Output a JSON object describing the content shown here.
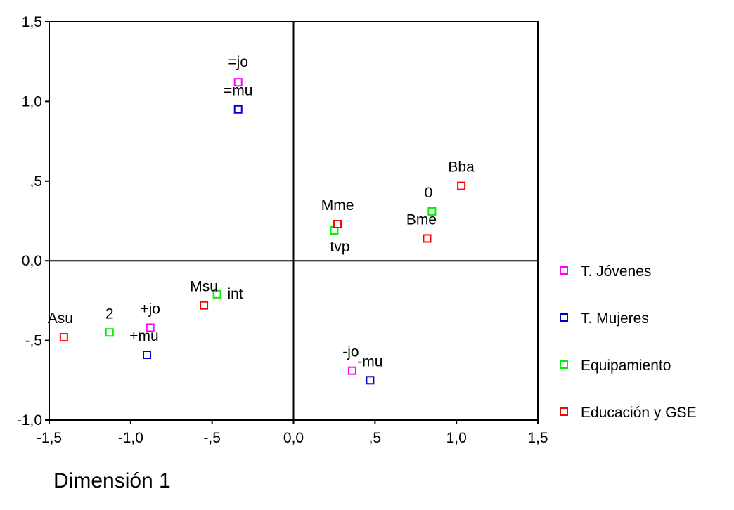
{
  "chart_data": {
    "type": "scatter",
    "xlabel": "Dimensión 1",
    "ylabel": "",
    "xlim": [
      -1.5,
      1.5
    ],
    "ylim": [
      -1.0,
      1.5
    ],
    "xticks": [
      {
        "value": -1.5,
        "label": "-1,5"
      },
      {
        "value": -1.0,
        "label": "-1,0"
      },
      {
        "value": -0.5,
        "label": "-,5"
      },
      {
        "value": 0.0,
        "label": "0,0"
      },
      {
        "value": 0.5,
        "label": ",5"
      },
      {
        "value": 1.0,
        "label": "1,0"
      },
      {
        "value": 1.5,
        "label": "1,5"
      }
    ],
    "yticks": [
      {
        "value": 1.5,
        "label": "1,5"
      },
      {
        "value": 1.0,
        "label": "1,0"
      },
      {
        "value": 0.5,
        "label": ",5"
      },
      {
        "value": 0.0,
        "label": "0,0"
      },
      {
        "value": -0.5,
        "label": "-,5"
      },
      {
        "value": -1.0,
        "label": "-1,0"
      }
    ],
    "reference_lines": {
      "x": 0.0,
      "y": 0.0
    },
    "grid": false,
    "legend_position": "right",
    "series": [
      {
        "name": "T. Jóvenes",
        "color": "#ff00ff",
        "marker": "open-square",
        "points": [
          {
            "x": -0.34,
            "y": 1.12,
            "label": "=jo"
          },
          {
            "x": -0.88,
            "y": -0.42,
            "label": "+jo"
          },
          {
            "x": 0.36,
            "y": -0.69,
            "label": "-jo"
          }
        ]
      },
      {
        "name": "T. Mujeres",
        "color": "#0000cc",
        "marker": "open-square",
        "points": [
          {
            "x": -0.34,
            "y": 0.95,
            "label": "=mu"
          },
          {
            "x": -0.9,
            "y": -0.59,
            "label": "+mu"
          },
          {
            "x": 0.47,
            "y": -0.75,
            "label": "-mu"
          }
        ]
      },
      {
        "name": "Equipamiento",
        "color": "#00ee00",
        "marker": "open-square",
        "points": [
          {
            "x": 0.85,
            "y": 0.31,
            "label": "0"
          },
          {
            "x": 0.25,
            "y": 0.19,
            "label": "tvp"
          },
          {
            "x": -0.47,
            "y": -0.21,
            "label": "int"
          },
          {
            "x": -1.13,
            "y": -0.45,
            "label": "2"
          }
        ]
      },
      {
        "name": "Educación y GSE",
        "color": "#ff0000",
        "marker": "open-square",
        "points": [
          {
            "x": 1.03,
            "y": 0.47,
            "label": "Bba"
          },
          {
            "x": 0.82,
            "y": 0.14,
            "label": "Bme"
          },
          {
            "x": 0.27,
            "y": 0.23,
            "label": "Mme"
          },
          {
            "x": -0.55,
            "y": -0.28,
            "label": "Msu"
          },
          {
            "x": -1.41,
            "y": -0.48,
            "label": "Asu"
          }
        ]
      }
    ]
  }
}
